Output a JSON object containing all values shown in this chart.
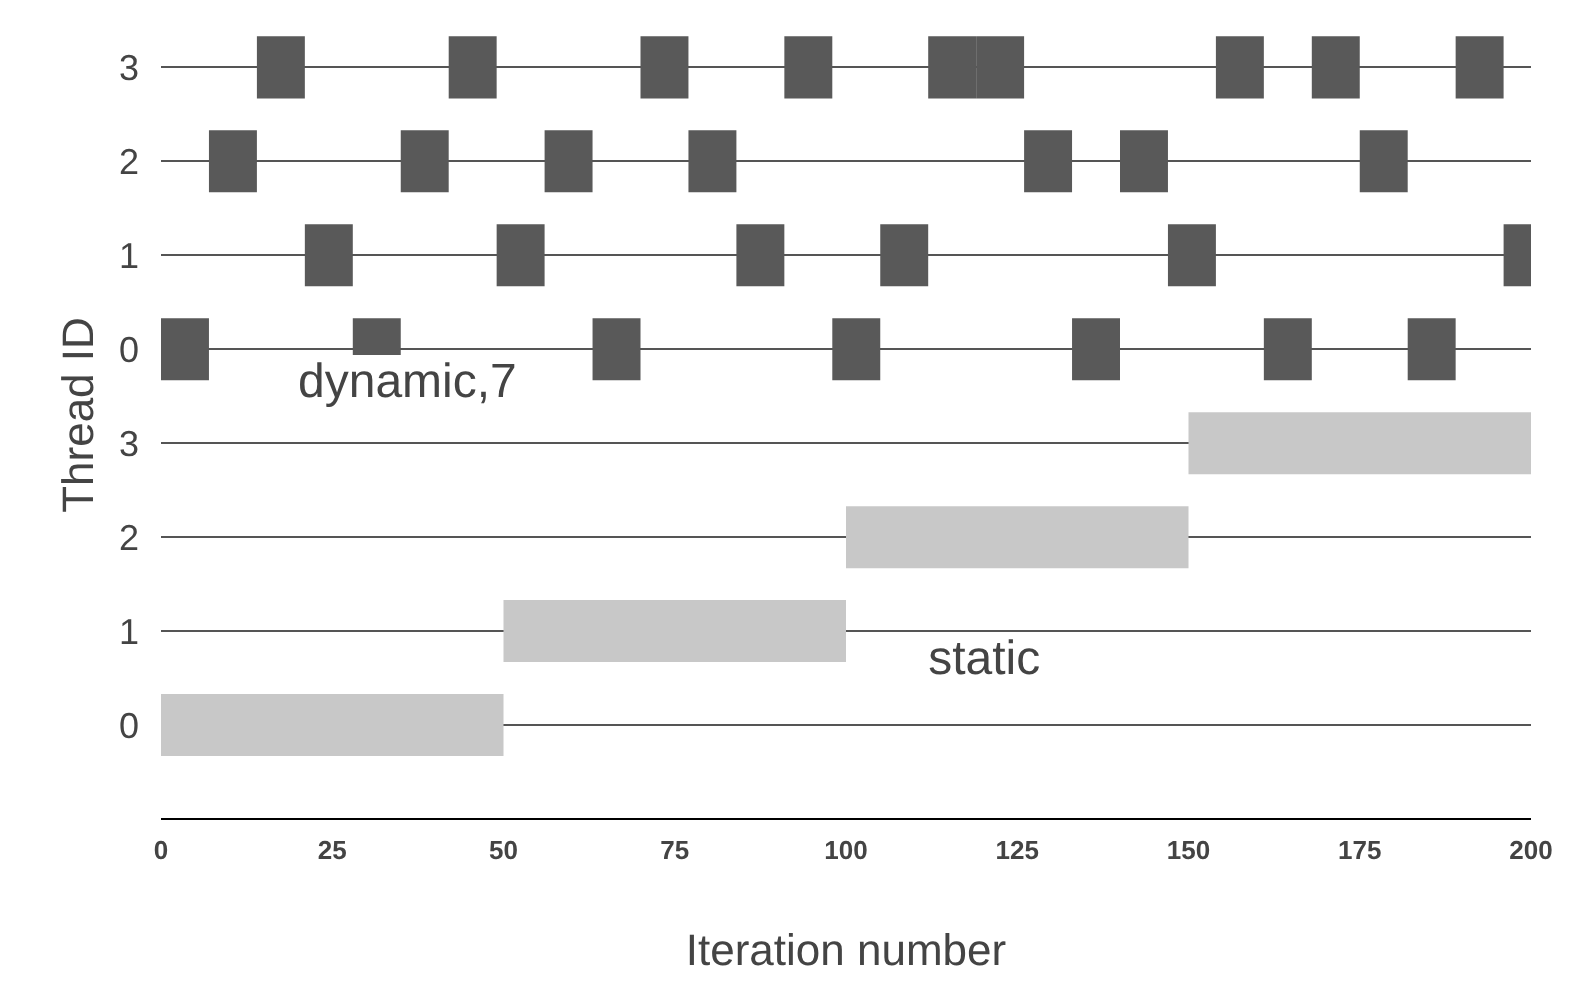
{
  "chart_data": {
    "type": "bar",
    "orientation": "horizontal",
    "xlabel": "Iteration number",
    "ylabel": "Thread ID",
    "categories": [
      "3",
      "2",
      "1",
      "0",
      "3",
      "2",
      "1",
      "0"
    ],
    "xlim": [
      0,
      200
    ],
    "xticks": [
      0,
      25,
      50,
      75,
      100,
      125,
      150,
      175,
      200
    ],
    "grid": "y",
    "annotations": [
      "dynamic,7",
      "static"
    ],
    "series": [
      {
        "color": "#595959",
        "base": [
          14,
          7,
          21,
          0,
          null,
          null,
          null,
          null
        ],
        "values": [
          7,
          7,
          7,
          7,
          null,
          null,
          null,
          null
        ]
      },
      {
        "color": "#595959",
        "base": [
          42,
          35,
          49,
          28,
          null,
          null,
          null,
          null
        ],
        "values": [
          7,
          7,
          7,
          7,
          null,
          null,
          null,
          null
        ]
      },
      {
        "color": "#595959",
        "base": [
          70,
          56,
          84,
          63,
          null,
          null,
          null,
          null
        ],
        "values": [
          7,
          7,
          7,
          7,
          null,
          null,
          null,
          null
        ]
      },
      {
        "color": "#595959",
        "base": [
          91,
          77,
          105,
          98,
          null,
          null,
          null,
          null
        ],
        "values": [
          7,
          7,
          7,
          7,
          null,
          null,
          null,
          null
        ]
      },
      {
        "color": "#595959",
        "base": [
          112,
          126,
          147,
          133,
          null,
          null,
          null,
          null
        ],
        "values": [
          7,
          7,
          7,
          7,
          null,
          null,
          null,
          null
        ]
      },
      {
        "color": "#595959",
        "base": [
          119,
          140,
          196,
          161,
          null,
          null,
          null,
          null
        ],
        "values": [
          7,
          7,
          4,
          7,
          null,
          null,
          null,
          null
        ]
      },
      {
        "color": "#595959",
        "base": [
          154,
          175,
          null,
          182,
          null,
          null,
          null,
          null
        ],
        "values": [
          7,
          7,
          null,
          7,
          null,
          null,
          null,
          null
        ]
      },
      {
        "color": "#595959",
        "base": [
          168,
          null,
          null,
          null,
          null,
          null,
          null,
          null
        ],
        "values": [
          7,
          null,
          null,
          null,
          null,
          null,
          null,
          null
        ]
      },
      {
        "color": "#595959",
        "base": [
          189,
          null,
          null,
          null,
          null,
          null,
          null,
          null
        ],
        "values": [
          7,
          null,
          null,
          null,
          null,
          null,
          null,
          null
        ]
      },
      {
        "color": "#c8c8c8",
        "base": [
          null,
          null,
          null,
          null,
          150,
          100,
          50,
          0
        ],
        "values": [
          null,
          null,
          null,
          null,
          50,
          50,
          50,
          50
        ]
      }
    ]
  }
}
